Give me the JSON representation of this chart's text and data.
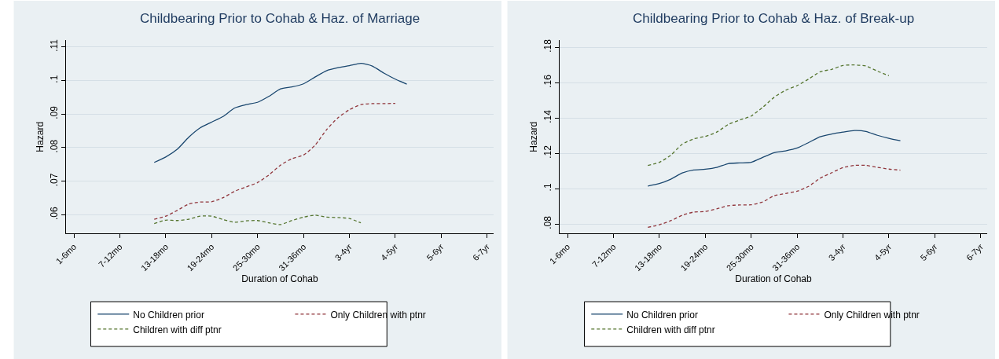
{
  "chart_data": [
    {
      "type": "line",
      "title": "Childbearing Prior to Cohab & Haz. of Marriage",
      "xlabel": "Duration of Cohab",
      "ylabel": "Hazard",
      "categories": [
        "1-6mo",
        null,
        null,
        null,
        "7-12mo",
        null,
        null,
        null,
        "13-18mo",
        null,
        null,
        null,
        "19-24mo",
        null,
        null,
        null,
        "25-30mo",
        null,
        null,
        null,
        "31-36mo",
        null,
        null,
        null,
        "3-4yr",
        null,
        null,
        null,
        "4-5yr",
        null,
        null,
        null,
        "5-6yr",
        null,
        null,
        null,
        "6-7yr"
      ],
      "ylim": [
        0.0544,
        0.112
      ],
      "yticks": [
        {
          "value": 0.06,
          "label": ".06"
        },
        {
          "value": 0.07,
          "label": ".07"
        },
        {
          "value": 0.08,
          "label": ".08"
        },
        {
          "value": 0.09,
          "label": ".09"
        },
        {
          "value": 0.1,
          "label": ".1"
        },
        {
          "value": 0.11,
          "label": ".11"
        }
      ],
      "grid": "y",
      "legend": "bottom",
      "series": [
        {
          "name": "No Children prior",
          "color": "#1a476f",
          "line_style": "solid",
          "values": [
            null,
            null,
            null,
            null,
            null,
            null,
            null,
            0.0756,
            0.0772,
            0.0795,
            0.0831,
            0.0859,
            0.0876,
            0.0893,
            0.0918,
            0.0928,
            0.0935,
            0.0953,
            0.0975,
            0.0981,
            0.099,
            0.101,
            0.1029,
            0.1038,
            0.1044,
            0.1051,
            0.1043,
            0.1022,
            0.1004,
            0.0989,
            null,
            null,
            null,
            null,
            null,
            null,
            null
          ]
        },
        {
          "name": "Only Children with ptnr",
          "color": "#90353b",
          "line_style": "dashed",
          "values": [
            null,
            null,
            null,
            null,
            null,
            null,
            null,
            0.0587,
            0.0596,
            0.0613,
            0.0632,
            0.0638,
            0.0639,
            0.0651,
            0.067,
            0.0683,
            0.0696,
            0.0719,
            0.0748,
            0.0767,
            0.0778,
            0.0807,
            0.0853,
            0.0889,
            0.0913,
            0.0928,
            0.0931,
            0.0931,
            0.0932,
            null,
            null,
            null,
            null,
            null,
            null,
            null,
            null
          ]
        },
        {
          "name": "Children with diff ptnr",
          "color": "#55752f",
          "line_style": "dashed",
          "values": [
            null,
            null,
            null,
            null,
            null,
            null,
            null,
            0.0574,
            0.0584,
            0.0583,
            0.0587,
            0.0596,
            0.0596,
            0.0586,
            0.0578,
            0.0582,
            0.0583,
            0.0576,
            0.0571,
            0.0583,
            0.0593,
            0.0599,
            0.0593,
            0.0592,
            0.0589,
            0.0576,
            null,
            null,
            null,
            null,
            null,
            null,
            null,
            null,
            null,
            null,
            null
          ]
        }
      ]
    },
    {
      "type": "line",
      "title": "Childbearing Prior to Cohab & Haz. of Break-up",
      "xlabel": "Duration of Cohab",
      "ylabel": "Hazard",
      "categories": [
        "1-6mo",
        null,
        null,
        null,
        "7-12mo",
        null,
        null,
        null,
        "13-18mo",
        null,
        null,
        null,
        "19-24mo",
        null,
        null,
        null,
        "25-30mo",
        null,
        null,
        null,
        "31-36mo",
        null,
        null,
        null,
        "3-4yr",
        null,
        null,
        null,
        "4-5yr",
        null,
        null,
        null,
        "5-6yr",
        null,
        null,
        null,
        "6-7yr"
      ],
      "ylim": [
        0.0746,
        0.184
      ],
      "yticks": [
        {
          "value": 0.08,
          "label": ".08"
        },
        {
          "value": 0.1,
          "label": ".1"
        },
        {
          "value": 0.12,
          "label": ".12"
        },
        {
          "value": 0.14,
          "label": ".14"
        },
        {
          "value": 0.16,
          "label": ".16"
        },
        {
          "value": 0.18,
          "label": ".18"
        }
      ],
      "grid": "y",
      "legend": "bottom",
      "series": [
        {
          "name": "No Children prior",
          "color": "#1a476f",
          "line_style": "solid",
          "values": [
            null,
            null,
            null,
            null,
            null,
            null,
            null,
            0.1015,
            0.1029,
            0.1054,
            0.1089,
            0.1106,
            0.111,
            0.112,
            0.1142,
            0.1146,
            0.1149,
            0.1177,
            0.1204,
            0.1214,
            0.123,
            0.1261,
            0.1294,
            0.1309,
            0.132,
            0.1329,
            0.1324,
            0.1302,
            0.1285,
            0.1271,
            null,
            null,
            null,
            null,
            null,
            null,
            null
          ]
        },
        {
          "name": "Only Children with ptnr",
          "color": "#90353b",
          "line_style": "dashed",
          "values": [
            null,
            null,
            null,
            null,
            null,
            null,
            null,
            0.0782,
            0.0796,
            0.0819,
            0.085,
            0.0868,
            0.0871,
            0.0886,
            0.0904,
            0.0908,
            0.0909,
            0.0925,
            0.096,
            0.0973,
            0.0986,
            0.1013,
            0.1059,
            0.109,
            0.1119,
            0.1132,
            0.1132,
            0.1121,
            0.1111,
            0.1105,
            null,
            null,
            null,
            null,
            null,
            null,
            null
          ]
        },
        {
          "name": "Children with diff ptnr",
          "color": "#55752f",
          "line_style": "dashed",
          "values": [
            null,
            null,
            null,
            null,
            null,
            null,
            null,
            0.1132,
            0.1149,
            0.119,
            0.1252,
            0.1282,
            0.1296,
            0.132,
            0.1363,
            0.1388,
            0.1411,
            0.146,
            0.1517,
            0.1557,
            0.1583,
            0.162,
            0.1661,
            0.1675,
            0.1697,
            0.17,
            0.1694,
            0.1665,
            0.1639,
            null,
            null,
            null,
            null,
            null,
            null,
            null,
            null
          ]
        }
      ]
    }
  ]
}
